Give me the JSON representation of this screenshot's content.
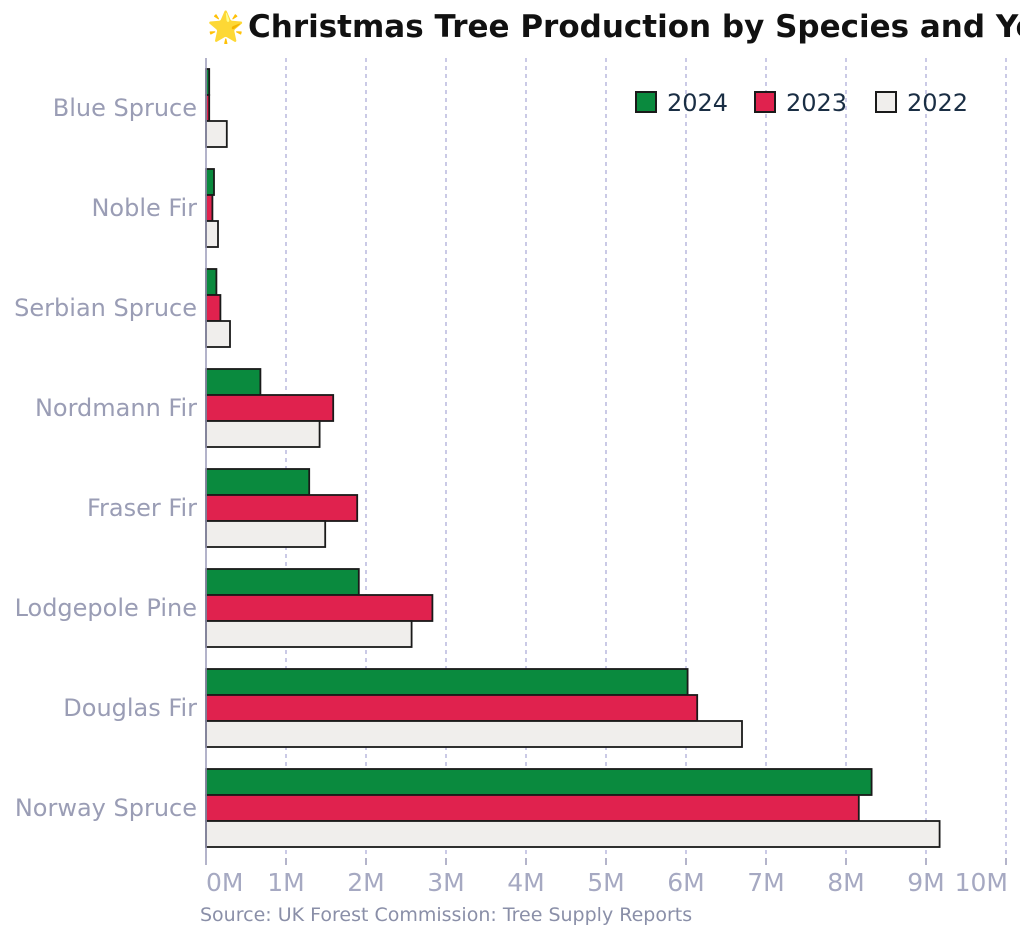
{
  "chart_data": {
    "type": "bar",
    "orientation": "horizontal",
    "title_icon": "🌟",
    "title": "Christmas Tree Production by Species and Year",
    "source": "Source: UK Forest Commission: Tree Supply Reports",
    "categories": [
      "Blue Spruce",
      "Noble Fir",
      "Serbian Spruce",
      "Nordmann Fir",
      "Fraser Fir",
      "Lodgepole Pine",
      "Douglas Fir",
      "Norway Spruce"
    ],
    "series": [
      {
        "name": "2024",
        "color": "#0a8a3e",
        "values": [
          0.04,
          0.1,
          0.13,
          0.68,
          1.29,
          1.91,
          6.02,
          8.32
        ]
      },
      {
        "name": "2023",
        "color": "#e0224e",
        "values": [
          0.04,
          0.08,
          0.18,
          1.59,
          1.89,
          2.83,
          6.14,
          8.16
        ]
      },
      {
        "name": "2022",
        "color": "#f0eeec",
        "values": [
          0.26,
          0.15,
          0.3,
          1.42,
          1.49,
          2.57,
          6.7,
          9.17
        ]
      }
    ],
    "xlim": [
      0,
      10
    ],
    "x_ticks": [
      "0M",
      "1M",
      "2M",
      "3M",
      "4M",
      "5M",
      "6M",
      "7M",
      "8M",
      "9M",
      "10M"
    ],
    "unit": "million trees",
    "grid": "vertical dashed",
    "legend_position": "top-right"
  }
}
